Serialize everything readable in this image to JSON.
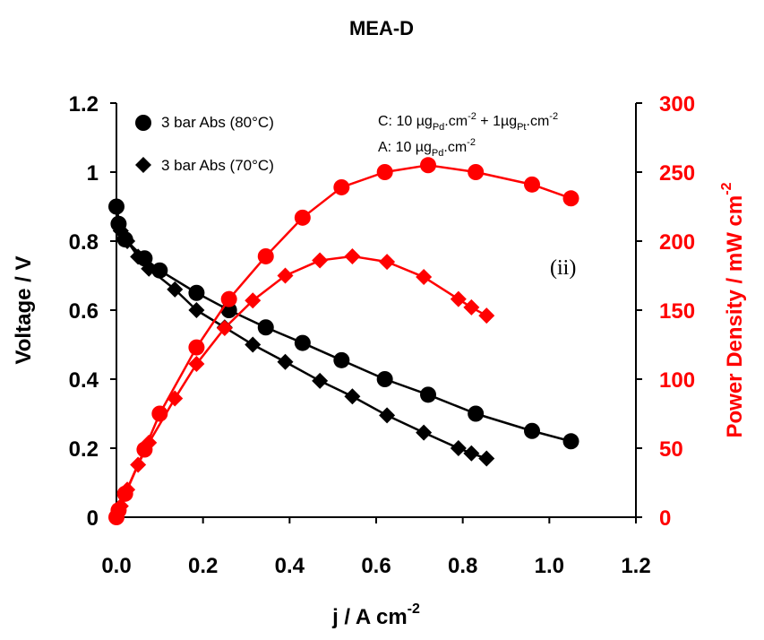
{
  "chart_data": {
    "type": "line",
    "title": "MEA-D",
    "xlabel": "j / A cm",
    "xlabel_sup": "-2",
    "ylabel": "Voltage / V",
    "y2label": "Power Density / mW cm",
    "y2label_sup": "-2",
    "xlim": [
      0,
      1.2
    ],
    "ylim": [
      0,
      1.2
    ],
    "y2lim": [
      0,
      300
    ],
    "xticks": [
      "0.0",
      "0.2",
      "0.4",
      "0.6",
      "0.8",
      "1.0",
      "1.2"
    ],
    "yticks": [
      "0",
      "0.2",
      "0.4",
      "0.6",
      "0.8",
      "1",
      "1.2"
    ],
    "y2ticks": [
      "0",
      "50",
      "100",
      "150",
      "200",
      "250",
      "300"
    ],
    "annotations": {
      "catalyst_cathode_prefix": "C: 10 µg",
      "catalyst_cathode_sub1": "Pd",
      "catalyst_cathode_mid1": ".cm",
      "catalyst_cathode_sup1": "-2",
      "catalyst_cathode_mid2": " + 1µg",
      "catalyst_cathode_sub2": "Pt",
      "catalyst_cathode_mid3": ".cm",
      "catalyst_cathode_sup2": "-2",
      "catalyst_anode_prefix": "A: 10 µg",
      "catalyst_anode_sub": "Pd",
      "catalyst_anode_mid": ".cm",
      "catalyst_anode_sup": "-2",
      "panel_label": "(ii)"
    },
    "legend": [
      {
        "label": "3 bar Abs (80°C)",
        "marker": "circle"
      },
      {
        "label": "3 bar Abs (70°C)",
        "marker": "diamond"
      }
    ],
    "series": [
      {
        "name": "3 bar Abs (80°C)",
        "axis": "left",
        "color": "#000000",
        "marker": "circle",
        "x": [
          0.0,
          0.005,
          0.02,
          0.065,
          0.1,
          0.185,
          0.26,
          0.345,
          0.43,
          0.52,
          0.62,
          0.72,
          0.83,
          0.96,
          1.05
        ],
        "y": [
          0.9,
          0.85,
          0.805,
          0.75,
          0.715,
          0.65,
          0.6,
          0.55,
          0.505,
          0.455,
          0.4,
          0.355,
          0.3,
          0.25,
          0.22
        ]
      },
      {
        "name": "3 bar Abs (70°C)",
        "axis": "left",
        "color": "#000000",
        "marker": "diamond",
        "x": [
          0.0,
          0.01,
          0.025,
          0.05,
          0.075,
          0.135,
          0.185,
          0.25,
          0.315,
          0.39,
          0.47,
          0.545,
          0.625,
          0.71,
          0.79,
          0.82,
          0.855
        ],
        "y": [
          0.9,
          0.83,
          0.8,
          0.755,
          0.72,
          0.66,
          0.6,
          0.55,
          0.5,
          0.45,
          0.395,
          0.35,
          0.295,
          0.245,
          0.2,
          0.185,
          0.17
        ]
      },
      {
        "axis": "right",
        "color": "#ff0000",
        "marker": "circle",
        "x": [
          0.0,
          0.005,
          0.02,
          0.065,
          0.1,
          0.185,
          0.26,
          0.345,
          0.43,
          0.52,
          0.62,
          0.72,
          0.83,
          0.96,
          1.05
        ],
        "y": [
          0,
          5,
          17,
          49,
          75,
          123,
          158,
          189,
          217,
          239,
          250,
          255,
          250,
          241,
          231
        ]
      },
      {
        "axis": "right",
        "color": "#ff0000",
        "marker": "diamond",
        "x": [
          0.0,
          0.01,
          0.025,
          0.05,
          0.075,
          0.135,
          0.185,
          0.25,
          0.315,
          0.39,
          0.47,
          0.545,
          0.625,
          0.71,
          0.79,
          0.82,
          0.855
        ],
        "y": [
          0,
          8,
          20,
          38,
          54,
          86,
          111,
          137,
          157,
          175,
          186,
          189,
          185,
          174,
          158,
          152,
          146
        ]
      }
    ]
  }
}
